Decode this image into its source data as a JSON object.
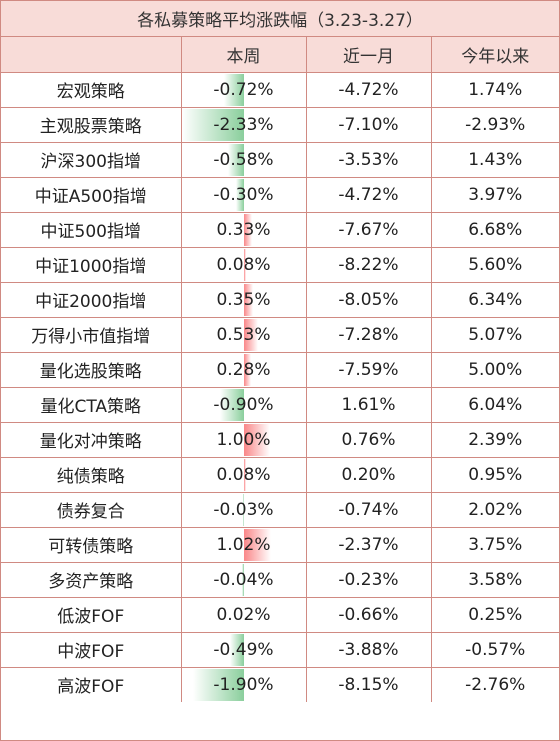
{
  "title": "各私募策略平均涨跌幅（3.23-3.27）",
  "columns": [
    "",
    "本周",
    "近一月",
    "今年以来"
  ],
  "rows": [
    {
      "name": "宏观策略",
      "week": "-0.72%",
      "month": "-4.72%",
      "ytd": "1.74%",
      "week_value": -0.72
    },
    {
      "name": "主观股票策略",
      "week": "-2.33%",
      "month": "-7.10%",
      "ytd": "-2.93%",
      "week_value": -2.33
    },
    {
      "name": "沪深300指增",
      "week": "-0.58%",
      "month": "-3.53%",
      "ytd": "1.43%",
      "week_value": -0.58
    },
    {
      "name": "中证A500指增",
      "week": "-0.30%",
      "month": "-4.72%",
      "ytd": "3.97%",
      "week_value": -0.3
    },
    {
      "name": "中证500指增",
      "week": "0.33%",
      "month": "-7.67%",
      "ytd": "6.68%",
      "week_value": 0.33
    },
    {
      "name": "中证1000指增",
      "week": "0.08%",
      "month": "-8.22%",
      "ytd": "5.60%",
      "week_value": 0.08
    },
    {
      "name": "中证2000指增",
      "week": "0.35%",
      "month": "-8.05%",
      "ytd": "6.34%",
      "week_value": 0.35
    },
    {
      "name": "万得小市值指增",
      "week": "0.53%",
      "month": "-7.28%",
      "ytd": "5.07%",
      "week_value": 0.53
    },
    {
      "name": "量化选股策略",
      "week": "0.28%",
      "month": "-7.59%",
      "ytd": "5.00%",
      "week_value": 0.28
    },
    {
      "name": "量化CTA策略",
      "week": "-0.90%",
      "month": "1.61%",
      "ytd": "6.04%",
      "week_value": -0.9
    },
    {
      "name": "量化对冲策略",
      "week": "1.00%",
      "month": "0.76%",
      "ytd": "2.39%",
      "week_value": 1.0
    },
    {
      "name": "纯债策略",
      "week": "0.08%",
      "month": "0.20%",
      "ytd": "0.95%",
      "week_value": 0.08
    },
    {
      "name": "债券复合",
      "week": "-0.03%",
      "month": "-0.74%",
      "ytd": "2.02%",
      "week_value": -0.03
    },
    {
      "name": "可转债策略",
      "week": "1.02%",
      "month": "-2.37%",
      "ytd": "3.75%",
      "week_value": 1.02
    },
    {
      "name": "多资产策略",
      "week": "-0.04%",
      "month": "-0.23%",
      "ytd": "3.58%",
      "week_value": -0.04
    },
    {
      "name": "低波FOF",
      "week": "0.02%",
      "month": "-0.66%",
      "ytd": "0.25%",
      "week_value": 0.02
    },
    {
      "name": "中波FOF",
      "week": "-0.49%",
      "month": "-3.88%",
      "ytd": "-0.57%",
      "week_value": -0.49
    },
    {
      "name": "高波FOF",
      "week": "-1.90%",
      "month": "-8.15%",
      "ytd": "-2.76%",
      "week_value": -1.9
    }
  ],
  "colors": {
    "border": "#d08a82",
    "header_bg": "#f8dcd8",
    "positive_bar": "#f8696b",
    "negative_bar": "#63be7b"
  }
}
